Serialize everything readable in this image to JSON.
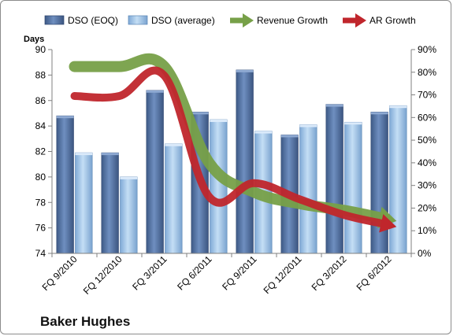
{
  "chart_data": {
    "type": "bar",
    "title": "Baker Hughes",
    "ylabel": "Days",
    "ylim": [
      74,
      90
    ],
    "yticks": [
      74,
      76,
      78,
      80,
      82,
      84,
      86,
      88,
      90
    ],
    "y2lim": [
      0,
      90
    ],
    "y2ticks": [
      "0%",
      "10%",
      "20%",
      "30%",
      "40%",
      "50%",
      "60%",
      "70%",
      "80%",
      "90%"
    ],
    "grid": false,
    "legend_position": "top",
    "categories": [
      "FQ 9/2010",
      "FQ 12/2010",
      "FQ 3/2011",
      "FQ 6/2011",
      "FQ 9/2011",
      "FQ 12/2011",
      "FQ 3/2012",
      "FQ 6/2012"
    ],
    "series": [
      {
        "name": "DSO (EOQ)",
        "kind": "bar",
        "axis": "left",
        "color": "#4f6fa0",
        "values": [
          84.8,
          81.9,
          86.8,
          85.1,
          88.4,
          83.3,
          85.7,
          85.1
        ]
      },
      {
        "name": "DSO (average)",
        "kind": "bar",
        "axis": "left",
        "color": "#9cc3e8",
        "values": [
          81.9,
          80.0,
          82.6,
          84.5,
          83.6,
          84.1,
          84.3,
          85.6
        ]
      },
      {
        "name": "Revenue Growth",
        "kind": "arrow-line",
        "axis": "right",
        "color": "#77a048",
        "values": [
          82.5,
          82.5,
          82.5,
          40,
          27,
          22,
          19,
          15
        ]
      },
      {
        "name": "AR Growth",
        "kind": "arrow-line",
        "axis": "right",
        "color": "#c0262c",
        "values": [
          69.5,
          69.5,
          78.5,
          25,
          31,
          24,
          17,
          12.5
        ]
      }
    ]
  }
}
